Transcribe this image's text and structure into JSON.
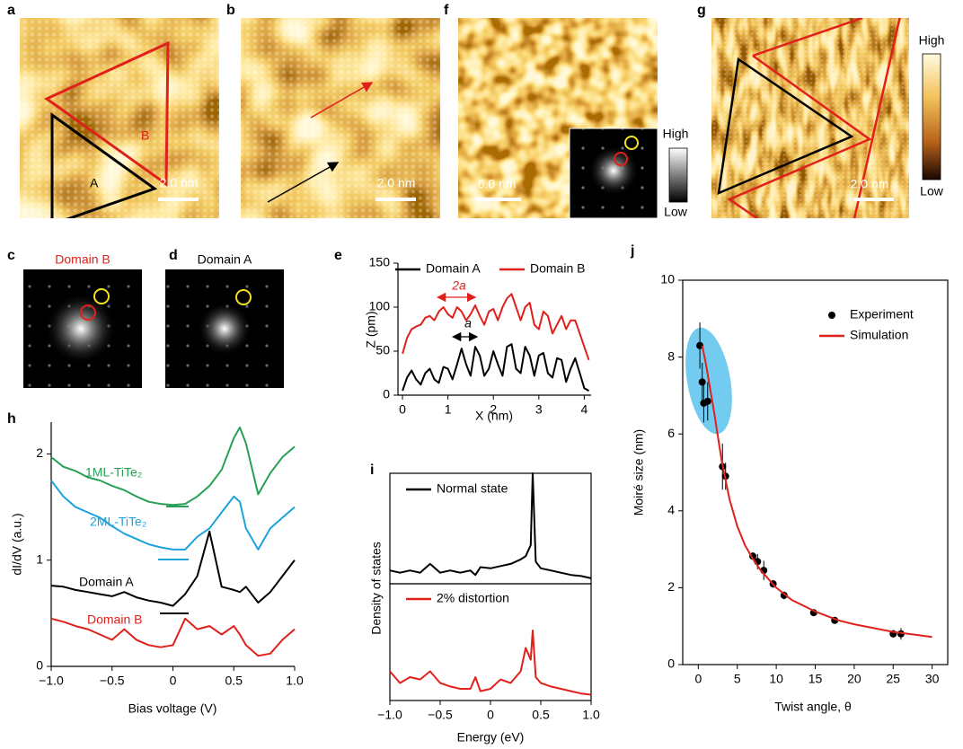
{
  "images": [
    {
      "label": "a",
      "scale_bar": "2.0 nm",
      "annotations": [
        "B",
        "A"
      ]
    },
    {
      "label": "b",
      "scale_bar": "2.0 nm"
    },
    {
      "label": "f",
      "scale_bar": "6.0 nm",
      "colorbar": [
        "High",
        "Low"
      ]
    },
    {
      "label": "g",
      "scale_bar": "2.0 nm",
      "colorbar": [
        "High",
        "Low"
      ]
    },
    {
      "label": "c",
      "title": "Domain B"
    },
    {
      "label": "d",
      "title": "Domain A"
    }
  ],
  "chart_data": [
    {
      "panel": "e",
      "type": "line",
      "frame": "axes",
      "xlabel": "X (nm)",
      "ylabel": "Z (pm)",
      "legend": "top",
      "x": [
        0,
        0.1,
        0.2,
        0.3,
        0.4,
        0.5,
        0.6,
        0.7,
        0.8,
        0.9,
        1,
        1.1,
        1.2,
        1.3,
        1.4,
        1.5,
        1.6,
        1.7,
        1.8,
        1.9,
        2,
        2.1,
        2.2,
        2.3,
        2.4,
        2.5,
        2.6,
        2.7,
        2.8,
        2.9,
        3,
        3.1,
        3.2,
        3.3,
        3.4,
        3.5,
        3.6,
        3.7,
        3.8,
        3.9,
        4,
        4.1
      ],
      "xlim": [
        -0.1,
        4.15
      ],
      "xticks": [
        0,
        1,
        2,
        3,
        4
      ],
      "ylim": [
        0,
        150
      ],
      "yticks": [
        0,
        50,
        100,
        150
      ],
      "annotations": [
        "2a",
        "a"
      ],
      "series": [
        {
          "name": "Domain A",
          "color": "#000000",
          "values": [
            5,
            20,
            28,
            18,
            12,
            25,
            30,
            18,
            14,
            32,
            30,
            18,
            35,
            53,
            35,
            22,
            55,
            45,
            22,
            30,
            50,
            35,
            22,
            55,
            58,
            30,
            25,
            55,
            45,
            22,
            45,
            48,
            25,
            20,
            42,
            40,
            15,
            30,
            42,
            25,
            8,
            5
          ]
        },
        {
          "name": "Domain B",
          "color": "#e0201b",
          "values": [
            47,
            65,
            75,
            78,
            80,
            88,
            90,
            85,
            95,
            100,
            92,
            88,
            100,
            95,
            85,
            92,
            102,
            90,
            80,
            95,
            98,
            85,
            100,
            110,
            115,
            100,
            85,
            100,
            105,
            80,
            75,
            95,
            90,
            70,
            80,
            90,
            75,
            85,
            85,
            70,
            55,
            40
          ]
        }
      ]
    },
    {
      "panel": "h",
      "type": "line",
      "frame": "axes",
      "xlabel": "Bias voltage (V)",
      "ylabel": "dI/dV (a.u.)",
      "legend": "inline",
      "x": [
        -1,
        -0.9,
        -0.8,
        -0.7,
        -0.6,
        -0.5,
        -0.4,
        -0.3,
        -0.2,
        -0.1,
        0,
        0.1,
        0.2,
        0.3,
        0.4,
        0.5,
        0.55,
        0.6,
        0.7,
        0.8,
        0.9,
        1
      ],
      "xlim": [
        -1,
        1
      ],
      "xticks": [
        {
          "value": -1,
          "label": "−1.0"
        },
        {
          "value": -0.5,
          "label": "−0.5"
        },
        0,
        0.5,
        {
          "value": 1,
          "label": "1.0"
        }
      ],
      "ylim": [
        0,
        2.3
      ],
      "yticks": [
        0,
        1,
        2
      ],
      "series": [
        {
          "name": "1ML-TiTe₂",
          "color": "#27a055",
          "values": [
            1.97,
            1.88,
            1.84,
            1.78,
            1.75,
            1.7,
            1.66,
            1.6,
            1.55,
            1.53,
            1.52,
            1.53,
            1.6,
            1.7,
            1.85,
            2.15,
            2.25,
            2.1,
            1.62,
            1.82,
            1.97,
            2.07
          ]
        },
        {
          "name": "2ML-TiTe₂",
          "color": "#1ca3dc",
          "values": [
            1.75,
            1.6,
            1.5,
            1.45,
            1.4,
            1.32,
            1.25,
            1.2,
            1.15,
            1.12,
            1.1,
            1.1,
            1.22,
            1.3,
            1.45,
            1.6,
            1.55,
            1.3,
            1.1,
            1.3,
            1.4,
            1.5
          ]
        },
        {
          "name": "Domain A",
          "color": "#000000",
          "values": [
            0.76,
            0.75,
            0.72,
            0.7,
            0.68,
            0.66,
            0.7,
            0.65,
            0.62,
            0.6,
            0.57,
            0.68,
            0.85,
            1.27,
            0.75,
            0.72,
            0.7,
            0.75,
            0.6,
            0.7,
            0.85,
            1.0
          ]
        },
        {
          "name": "Domain B",
          "color": "#e0201b",
          "values": [
            0.45,
            0.42,
            0.38,
            0.35,
            0.3,
            0.25,
            0.35,
            0.25,
            0.2,
            0.18,
            0.2,
            0.45,
            0.35,
            0.38,
            0.3,
            0.38,
            0.3,
            0.2,
            0.1,
            0.12,
            0.25,
            0.35
          ]
        }
      ]
    },
    {
      "panel": "i",
      "type": "line",
      "frame": "box",
      "ylabel": "Density of states",
      "legend": "top-left",
      "x": [
        -1,
        -0.9,
        -0.8,
        -0.7,
        -0.6,
        -0.5,
        -0.4,
        -0.3,
        -0.2,
        -0.15,
        -0.1,
        0,
        0.1,
        0.2,
        0.3,
        0.35,
        0.4,
        0.42,
        0.45,
        0.5,
        0.6,
        0.7,
        0.8,
        0.9,
        1
      ],
      "xlim": [
        -1,
        1
      ],
      "ylim": [
        0,
        1
      ],
      "series": [
        {
          "name": "Normal state",
          "color": "#000000",
          "values": [
            0.12,
            0.1,
            0.12,
            0.1,
            0.18,
            0.1,
            0.12,
            0.1,
            0.12,
            0.08,
            0.15,
            0.14,
            0.16,
            0.18,
            0.22,
            0.25,
            0.35,
            1.0,
            0.2,
            0.14,
            0.12,
            0.1,
            0.08,
            0.07,
            0.05
          ]
        }
      ]
    },
    {
      "type": "line",
      "frame": "box",
      "xlabel": "Energy (eV)",
      "legend": "top-left",
      "x": [
        -1,
        -0.9,
        -0.8,
        -0.7,
        -0.6,
        -0.5,
        -0.4,
        -0.3,
        -0.2,
        -0.15,
        -0.1,
        0,
        0.1,
        0.2,
        0.3,
        0.35,
        0.4,
        0.42,
        0.45,
        0.5,
        0.6,
        0.7,
        0.8,
        0.9,
        1
      ],
      "xlim": [
        -1,
        1
      ],
      "ylim": [
        0,
        1
      ],
      "xticks": [
        {
          "value": -1,
          "label": "−1.0"
        },
        {
          "value": -0.5,
          "label": "−0.5"
        },
        0,
        0.5,
        {
          "value": 1,
          "label": "1.0"
        }
      ],
      "series": [
        {
          "name": "2% distortion",
          "color": "#e0201b",
          "values": [
            0.25,
            0.15,
            0.2,
            0.18,
            0.25,
            0.15,
            0.12,
            0.1,
            0.1,
            0.2,
            0.08,
            0.1,
            0.18,
            0.15,
            0.25,
            0.45,
            0.35,
            0.6,
            0.2,
            0.15,
            0.12,
            0.1,
            0.08,
            0.06,
            0.05
          ]
        }
      ]
    },
    {
      "panel": "j",
      "type": "scatter",
      "frame": "box",
      "xlabel": "Twist angle, θ",
      "ylabel": "Moiré size (nm)",
      "legend": "top-right",
      "xlim": [
        -2,
        32
      ],
      "xticks": [
        0,
        5,
        10,
        15,
        20,
        25,
        30
      ],
      "ylim": [
        0,
        10
      ],
      "yticks": [
        0,
        2,
        4,
        6,
        8,
        10
      ],
      "series": [
        {
          "name": "Experiment",
          "color": "#000000",
          "kind": "points",
          "x": [
            0.2,
            0.5,
            0.7,
            1.2,
            3.1,
            3.5,
            7,
            7.6,
            8.4,
            9.6,
            11,
            14.8,
            17.5,
            25,
            26
          ],
          "values": [
            8.3,
            7.35,
            6.8,
            6.85,
            5.15,
            4.9,
            2.82,
            2.68,
            2.45,
            2.1,
            1.8,
            1.35,
            1.15,
            0.8,
            0.8
          ],
          "errors": [
            0.6,
            0.5,
            0.5,
            0.5,
            0.6,
            0.35,
            0.1,
            0.2,
            0.25,
            0.1,
            0.1,
            0.05,
            0.05,
            0.1,
            0.15
          ]
        },
        {
          "name": "Simulation",
          "color": "#e0201b",
          "kind": "line",
          "x": [
            0.5,
            1,
            2,
            3,
            4,
            5,
            6,
            7,
            8,
            10,
            12,
            15,
            18,
            20,
            25,
            30
          ],
          "values": [
            8.3,
            7.8,
            6.6,
            5.3,
            4.3,
            3.6,
            3.1,
            2.75,
            2.45,
            2,
            1.68,
            1.38,
            1.15,
            1.05,
            0.85,
            0.72
          ]
        }
      ]
    }
  ]
}
